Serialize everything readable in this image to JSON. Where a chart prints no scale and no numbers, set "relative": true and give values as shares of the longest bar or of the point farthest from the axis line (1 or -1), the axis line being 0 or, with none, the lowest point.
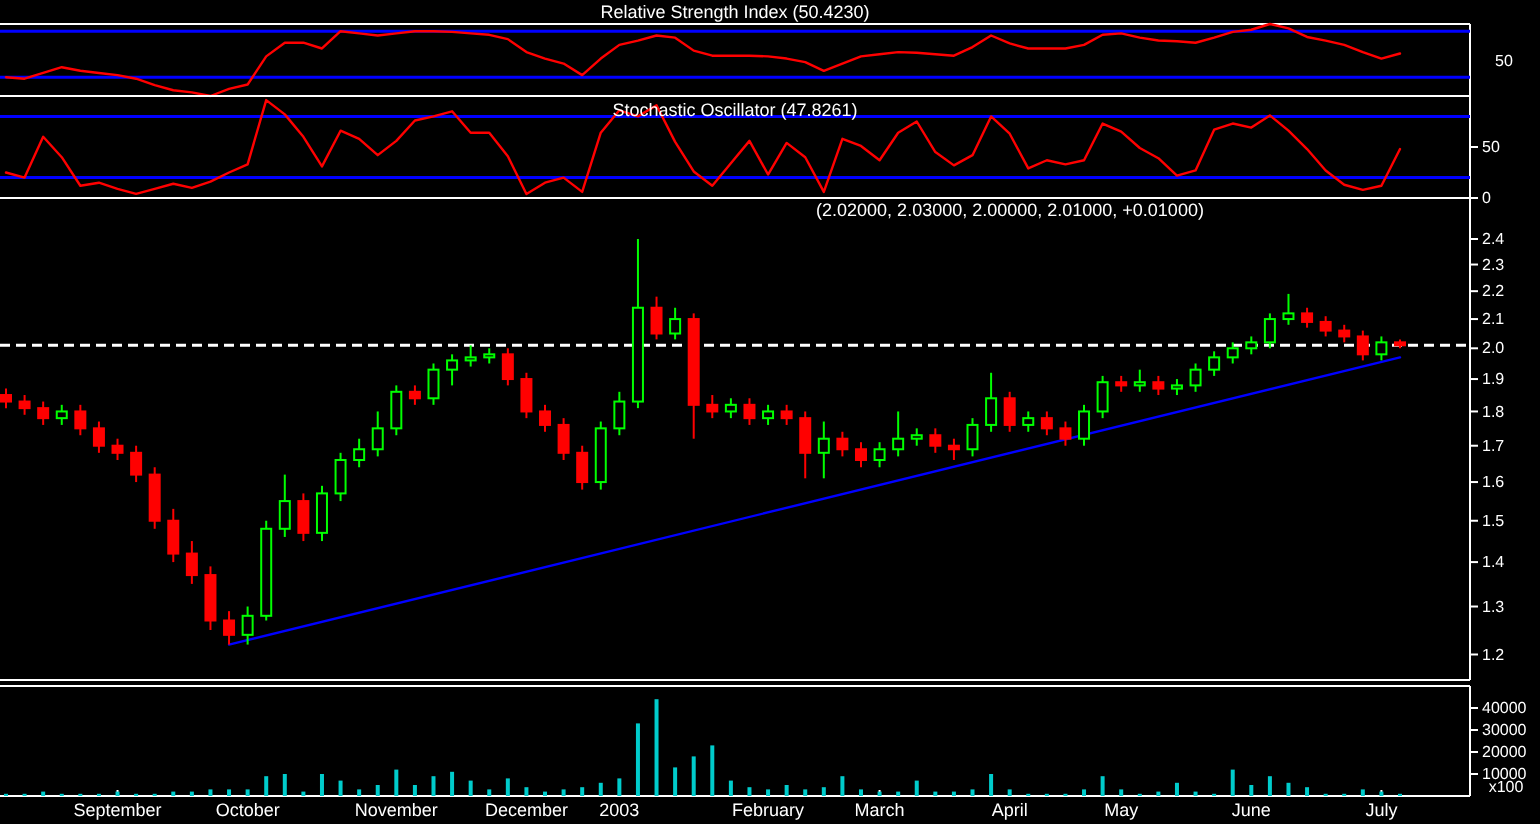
{
  "chart_data": [
    {
      "type": "line",
      "title": "Relative Strength Index (50.4230)",
      "relative": true,
      "tick_labels": false,
      "categories": [
        null,
        null,
        null,
        null,
        null,
        null,
        null,
        null,
        null,
        null,
        null,
        null,
        null,
        null,
        null,
        null,
        null,
        null,
        null,
        null,
        null,
        null,
        null,
        null,
        null,
        null,
        null,
        null,
        null,
        null,
        null,
        null,
        null,
        null,
        null,
        null,
        null,
        null,
        null,
        null,
        null,
        null,
        null,
        null,
        null,
        null,
        null,
        null,
        null,
        null,
        null,
        null,
        null,
        null,
        null,
        null,
        null,
        null,
        null,
        null,
        null,
        null,
        null,
        null,
        null,
        null,
        null,
        null,
        null,
        null,
        null,
        null,
        null,
        null,
        null,
        null
      ],
      "series": [
        {
          "color": "#ff0000",
          "values": [
            0.26,
            0.24,
            0.32,
            0.4,
            0.35,
            0.32,
            0.29,
            0.24,
            0.15,
            0.08,
            0.05,
            0,
            0.1,
            0.16,
            0.55,
            0.74,
            0.74,
            0.66,
            0.9,
            0.87,
            0.84,
            0.87,
            0.9,
            0.9,
            0.89,
            0.87,
            0.85,
            0.79,
            0.61,
            0.52,
            0.45,
            0.29,
            0.52,
            0.71,
            0.77,
            0.84,
            0.81,
            0.63,
            0.56,
            0.56,
            0.56,
            0.55,
            0.52,
            0.47,
            0.35,
            0.45,
            0.55,
            0.58,
            0.61,
            0.6,
            0.58,
            0.56,
            0.68,
            0.84,
            0.73,
            0.66,
            0.66,
            0.66,
            0.71,
            0.85,
            0.87,
            0.81,
            0.77,
            0.76,
            0.74,
            0.81,
            0.89,
            0.92,
            1,
            0.94,
            0.82,
            0.77,
            0.71,
            0.61,
            0.52,
            0.59
          ]
        }
      ],
      "ref_lines": [
        {
          "axis": "y",
          "value": 0.26,
          "color": "#0000ff"
        },
        {
          "axis": "y",
          "value": 0.9,
          "color": "#0000ff"
        }
      ],
      "annotations": [
        "50"
      ]
    },
    {
      "type": "line",
      "title": "Stochastic Oscillator (47.8261)",
      "tick_labels": "y",
      "ylim": [
        0,
        100
      ],
      "yticks": [
        0,
        50
      ],
      "categories": [
        null,
        null,
        null,
        null,
        null,
        null,
        null,
        null,
        null,
        null,
        null,
        null,
        null,
        null,
        null,
        null,
        null,
        null,
        null,
        null,
        null,
        null,
        null,
        null,
        null,
        null,
        null,
        null,
        null,
        null,
        null,
        null,
        null,
        null,
        null,
        null,
        null,
        null,
        null,
        null,
        null,
        null,
        null,
        null,
        null,
        null,
        null,
        null,
        null,
        null,
        null,
        null,
        null,
        null,
        null,
        null,
        null,
        null,
        null,
        null,
        null,
        null,
        null,
        null,
        null,
        null,
        null,
        null,
        null,
        null,
        null,
        null,
        null,
        null,
        null,
        null
      ],
      "series": [
        {
          "color": "#ff0000",
          "values": [
            25,
            20,
            60,
            40,
            12,
            15,
            9,
            4,
            9,
            14,
            10,
            16,
            25,
            33,
            96,
            82,
            60,
            31,
            66,
            58,
            42,
            56,
            76,
            80,
            85,
            64,
            64,
            41,
            4,
            15,
            20,
            6,
            64,
            86,
            80,
            91,
            55,
            26,
            12,
            34,
            56,
            23,
            54,
            40,
            6,
            58,
            51,
            37,
            64,
            75,
            45,
            32,
            42,
            80,
            63,
            29,
            37,
            33,
            37,
            73,
            65,
            49,
            39,
            22,
            27,
            67,
            73,
            69,
            81,
            66,
            48,
            27,
            13,
            8,
            12,
            48
          ]
        }
      ],
      "ref_lines": [
        {
          "axis": "y",
          "value": 20,
          "color": "#0000ff"
        },
        {
          "axis": "y",
          "value": 80,
          "color": "#0000ff"
        }
      ]
    },
    {
      "type": "candlestick",
      "title": "(2.02000, 2.03000, 2.00000, 2.01000, +0.01000)",
      "tick_labels": "y",
      "log": true,
      "ylim": [
        1.15,
        2.57
      ],
      "yticks": [
        1.2,
        1.3,
        1.4,
        1.5,
        1.6,
        1.7,
        1.8,
        1.9,
        {
          "value": 2,
          "label": "2.0"
        },
        2.1,
        2.2,
        2.3,
        2.4
      ],
      "categories": [
        null,
        null,
        null,
        null,
        null,
        null,
        null,
        null,
        null,
        null,
        null,
        null,
        null,
        null,
        null,
        null,
        null,
        null,
        null,
        null,
        null,
        null,
        null,
        null,
        null,
        null,
        null,
        null,
        null,
        null,
        null,
        null,
        null,
        null,
        null,
        null,
        null,
        null,
        null,
        null,
        null,
        null,
        null,
        null,
        null,
        null,
        null,
        null,
        null,
        null,
        null,
        null,
        null,
        null,
        null,
        null,
        null,
        null,
        null,
        null,
        null,
        null,
        null,
        null,
        null,
        null,
        null,
        null,
        null,
        null,
        null,
        null,
        null,
        null,
        null,
        null
      ],
      "ohlc": [
        [
          1.85,
          1.87,
          1.81,
          1.83
        ],
        [
          1.83,
          1.85,
          1.79,
          1.81
        ],
        [
          1.81,
          1.83,
          1.76,
          1.78
        ],
        [
          1.78,
          1.82,
          1.76,
          1.8
        ],
        [
          1.8,
          1.82,
          1.73,
          1.75
        ],
        [
          1.75,
          1.77,
          1.68,
          1.7
        ],
        [
          1.7,
          1.72,
          1.66,
          1.68
        ],
        [
          1.68,
          1.7,
          1.6,
          1.62
        ],
        [
          1.62,
          1.64,
          1.48,
          1.5
        ],
        [
          1.5,
          1.53,
          1.4,
          1.42
        ],
        [
          1.42,
          1.45,
          1.35,
          1.37
        ],
        [
          1.37,
          1.39,
          1.25,
          1.27
        ],
        [
          1.27,
          1.29,
          1.22,
          1.24
        ],
        [
          1.24,
          1.3,
          1.22,
          1.28
        ],
        [
          1.28,
          1.5,
          1.27,
          1.48
        ],
        [
          1.48,
          1.62,
          1.46,
          1.55
        ],
        [
          1.55,
          1.57,
          1.45,
          1.47
        ],
        [
          1.47,
          1.59,
          1.45,
          1.57
        ],
        [
          1.57,
          1.68,
          1.55,
          1.66
        ],
        [
          1.66,
          1.72,
          1.64,
          1.69
        ],
        [
          1.69,
          1.8,
          1.67,
          1.75
        ],
        [
          1.75,
          1.88,
          1.73,
          1.86
        ],
        [
          1.86,
          1.88,
          1.82,
          1.84
        ],
        [
          1.84,
          1.95,
          1.82,
          1.93
        ],
        [
          1.93,
          1.98,
          1.88,
          1.96
        ],
        [
          1.96,
          2.01,
          1.94,
          1.97
        ],
        [
          1.97,
          2.0,
          1.95,
          1.98
        ],
        [
          1.98,
          2.0,
          1.88,
          1.9
        ],
        [
          1.9,
          1.92,
          1.78,
          1.8
        ],
        [
          1.8,
          1.82,
          1.74,
          1.76
        ],
        [
          1.76,
          1.78,
          1.66,
          1.68
        ],
        [
          1.68,
          1.7,
          1.58,
          1.6
        ],
        [
          1.6,
          1.77,
          1.58,
          1.75
        ],
        [
          1.75,
          1.86,
          1.73,
          1.83
        ],
        [
          1.83,
          2.4,
          1.81,
          2.14
        ],
        [
          2.14,
          2.18,
          2.03,
          2.05
        ],
        [
          2.05,
          2.14,
          2.03,
          2.1
        ],
        [
          2.1,
          2.12,
          1.72,
          1.82
        ],
        [
          1.82,
          1.85,
          1.78,
          1.8
        ],
        [
          1.8,
          1.84,
          1.78,
          1.82
        ],
        [
          1.82,
          1.84,
          1.76,
          1.78
        ],
        [
          1.78,
          1.82,
          1.76,
          1.8
        ],
        [
          1.8,
          1.82,
          1.76,
          1.78
        ],
        [
          1.78,
          1.8,
          1.61,
          1.68
        ],
        [
          1.68,
          1.77,
          1.61,
          1.72
        ],
        [
          1.72,
          1.74,
          1.67,
          1.69
        ],
        [
          1.69,
          1.71,
          1.64,
          1.66
        ],
        [
          1.66,
          1.71,
          1.64,
          1.69
        ],
        [
          1.69,
          1.8,
          1.67,
          1.72
        ],
        [
          1.72,
          1.75,
          1.7,
          1.73
        ],
        [
          1.73,
          1.75,
          1.68,
          1.7
        ],
        [
          1.7,
          1.72,
          1.66,
          1.69
        ],
        [
          1.69,
          1.78,
          1.67,
          1.76
        ],
        [
          1.76,
          1.92,
          1.74,
          1.84
        ],
        [
          1.84,
          1.86,
          1.74,
          1.76
        ],
        [
          1.76,
          1.8,
          1.74,
          1.78
        ],
        [
          1.78,
          1.8,
          1.73,
          1.75
        ],
        [
          1.75,
          1.77,
          1.7,
          1.72
        ],
        [
          1.72,
          1.82,
          1.7,
          1.8
        ],
        [
          1.8,
          1.91,
          1.78,
          1.89
        ],
        [
          1.89,
          1.91,
          1.86,
          1.88
        ],
        [
          1.88,
          1.93,
          1.86,
          1.89
        ],
        [
          1.89,
          1.91,
          1.85,
          1.87
        ],
        [
          1.87,
          1.9,
          1.85,
          1.88
        ],
        [
          1.88,
          1.95,
          1.86,
          1.93
        ],
        [
          1.93,
          1.99,
          1.91,
          1.97
        ],
        [
          1.97,
          2.02,
          1.95,
          2.0
        ],
        [
          2.0,
          2.04,
          1.98,
          2.02
        ],
        [
          2.02,
          2.12,
          2.0,
          2.1
        ],
        [
          2.1,
          2.19,
          2.08,
          2.12
        ],
        [
          2.12,
          2.14,
          2.07,
          2.09
        ],
        [
          2.09,
          2.11,
          2.04,
          2.06
        ],
        [
          2.06,
          2.08,
          2.02,
          2.04
        ],
        [
          2.04,
          2.06,
          1.96,
          1.98
        ],
        [
          1.98,
          2.04,
          1.96,
          2.02
        ],
        [
          2.02,
          2.03,
          2.0,
          2.01
        ]
      ],
      "colors": [
        "#ff0000",
        "#ff0000",
        "#ff0000",
        "#00ff00",
        "#ff0000",
        "#ff0000",
        "#ff0000",
        "#ff0000",
        "#ff0000",
        "#ff0000",
        "#ff0000",
        "#ff0000",
        "#ff0000",
        "#00ff00",
        "#00ff00",
        "#00ff00",
        "#ff0000",
        "#00ff00",
        "#00ff00",
        "#00ff00",
        "#00ff00",
        "#00ff00",
        "#ff0000",
        "#00ff00",
        "#00ff00",
        "#00ff00",
        "#00ff00",
        "#ff0000",
        "#ff0000",
        "#ff0000",
        "#ff0000",
        "#ff0000",
        "#00ff00",
        "#00ff00",
        "#00ff00",
        "#ff0000",
        "#00ff00",
        "#ff0000",
        "#ff0000",
        "#00ff00",
        "#ff0000",
        "#00ff00",
        "#ff0000",
        "#ff0000",
        "#00ff00",
        "#ff0000",
        "#ff0000",
        "#00ff00",
        "#00ff00",
        "#00ff00",
        "#ff0000",
        "#ff0000",
        "#00ff00",
        "#00ff00",
        "#ff0000",
        "#00ff00",
        "#ff0000",
        "#ff0000",
        "#00ff00",
        "#00ff00",
        "#ff0000",
        "#00ff00",
        "#ff0000",
        "#00ff00",
        "#00ff00",
        "#00ff00",
        "#00ff00",
        "#00ff00",
        "#00ff00",
        "#00ff00",
        "#ff0000",
        "#ff0000",
        "#ff0000",
        "#ff0000",
        "#00ff00",
        "#ff0000"
      ],
      "series": [
        {
          "type": "line",
          "color": "#0000ff",
          "values": [
            null,
            null,
            null,
            null,
            null,
            null,
            null,
            null,
            null,
            null,
            null,
            null,
            1.22,
            null,
            null,
            null,
            null,
            null,
            null,
            null,
            null,
            null,
            null,
            null,
            null,
            null,
            null,
            null,
            null,
            null,
            null,
            null,
            null,
            null,
            null,
            null,
            null,
            null,
            null,
            null,
            null,
            null,
            null,
            null,
            null,
            null,
            null,
            null,
            null,
            null,
            null,
            null,
            null,
            null,
            null,
            null,
            null,
            null,
            null,
            null,
            null,
            null,
            null,
            null,
            null,
            null,
            null,
            null,
            null,
            null,
            null,
            null,
            null,
            null,
            null,
            1.97
          ]
        }
      ],
      "ref_lines": [
        {
          "axis": "y",
          "value": 2.01,
          "color": "#ffffff",
          "line_style": "dashed"
        }
      ]
    },
    {
      "type": "bar",
      "ylim": [
        0,
        50000
      ],
      "yticks": [
        10000,
        20000,
        30000,
        40000
      ],
      "categories": [
        null,
        null,
        null,
        null,
        null,
        null,
        "September",
        null,
        null,
        null,
        null,
        null,
        null,
        "October",
        null,
        null,
        null,
        null,
        null,
        null,
        null,
        "November",
        null,
        null,
        null,
        null,
        null,
        null,
        "December",
        null,
        null,
        null,
        null,
        "2003",
        null,
        null,
        null,
        null,
        null,
        null,
        null,
        "February",
        null,
        null,
        null,
        null,
        null,
        "March",
        null,
        null,
        null,
        null,
        null,
        null,
        "April",
        null,
        null,
        null,
        null,
        null,
        "May",
        null,
        null,
        null,
        null,
        null,
        null,
        "June",
        null,
        null,
        null,
        null,
        null,
        null,
        "July",
        null
      ],
      "values": [
        1000,
        1000,
        2000,
        1000,
        1000,
        1000,
        2000,
        1000,
        1000,
        2000,
        2000,
        3000,
        3000,
        3000,
        9000,
        10000,
        2000,
        10000,
        7000,
        3000,
        5000,
        12000,
        5000,
        9000,
        11000,
        7000,
        3000,
        8000,
        4000,
        2000,
        3000,
        4000,
        6000,
        8000,
        33000,
        44000,
        13000,
        18000,
        23000,
        7000,
        4000,
        3000,
        5000,
        3000,
        4000,
        9000,
        3000,
        2000,
        2000,
        7000,
        2000,
        2000,
        3000,
        10000,
        3000,
        1000,
        1000,
        1000,
        3000,
        9000,
        3000,
        1000,
        2000,
        6000,
        2000,
        1000,
        12000,
        5000,
        9000,
        6000,
        4000,
        1000,
        1000,
        3000,
        2000,
        1000
      ],
      "color": "#00cccc",
      "annotations": [
        "x100"
      ]
    }
  ]
}
